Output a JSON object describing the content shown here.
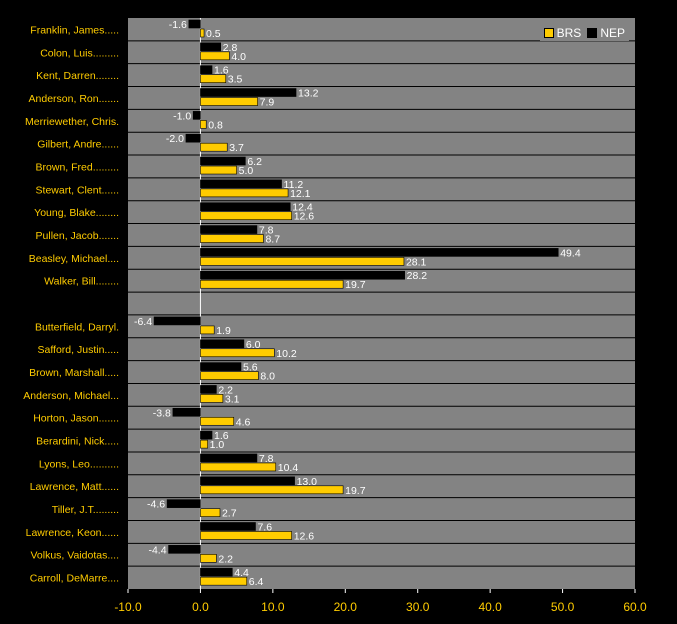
{
  "chart_data": {
    "type": "bar",
    "orientation": "horizontal",
    "categories": [
      "Franklin, James.....",
      "Colon, Luis.........",
      "Kent, Darren........",
      "Anderson, Ron.......",
      "Merriewether, Chris.",
      "Gilbert, Andre......",
      "Brown, Fred.........",
      "Stewart, Clent......",
      "Young, Blake........",
      "Pullen, Jacob.......",
      "Beasley, Michael....",
      "Walker, Bill........",
      "",
      "Butterfield, Darryl.",
      "Safford, Justin.....",
      "Brown, Marshall.....",
      "Anderson, Michael...",
      "Horton, Jason.......",
      "Berardini, Nick.....",
      "Lyons, Leo..........",
      "Lawrence, Matt......",
      "Tiller, J.T.........",
      "Lawrence, Keon......",
      "Volkus, Vaidotas....",
      "Carroll, DeMarre...."
    ],
    "series": [
      {
        "name": "NEP",
        "color": "#000000",
        "values": [
          -1.6,
          2.8,
          1.6,
          13.2,
          -1.0,
          -2.0,
          6.2,
          11.2,
          12.4,
          7.8,
          49.4,
          28.2,
          null,
          -6.4,
          6.0,
          5.6,
          2.2,
          -3.8,
          1.6,
          7.8,
          13.0,
          -4.6,
          7.6,
          -4.4,
          4.4
        ],
        "labels": [
          "-1.6",
          "2.8",
          "1.6",
          "13.2",
          "-1.0",
          "-2.0",
          "6.2",
          "11.2",
          "12.4",
          "7.8",
          "49.4",
          "28.2",
          "",
          "-6.4",
          "6.0",
          "5.6",
          "2.2",
          "-3.8",
          "1.6",
          "7.8",
          "13.0",
          "-4.6",
          "7.6",
          "-4.4",
          "4.4"
        ]
      },
      {
        "name": "BRS",
        "color": "#FFCC00",
        "values": [
          0.5,
          4.0,
          3.5,
          7.9,
          0.8,
          3.7,
          5.0,
          12.1,
          12.6,
          8.7,
          28.1,
          19.7,
          null,
          1.9,
          10.2,
          8.0,
          3.1,
          4.6,
          1.0,
          10.4,
          19.7,
          2.7,
          12.6,
          2.2,
          6.4
        ],
        "labels": [
          "0.5",
          "4.0",
          "3.5",
          "7.9",
          "0.8",
          "3.7",
          "5.0",
          "12.1",
          "12.6",
          "8.7",
          "28.1",
          "19.7",
          "",
          "1.9",
          "10.2",
          "8.0",
          "3.1",
          "4.6",
          "1.0",
          "10.4",
          "19.7",
          "2.7",
          "12.6",
          "2.2",
          "6.4"
        ]
      }
    ],
    "xlim": [
      -10,
      60
    ],
    "xticks": [
      "-10.0",
      "0.0",
      "10.0",
      "20.0",
      "30.0",
      "40.0",
      "50.0",
      "60.0"
    ],
    "grid": true,
    "legend": {
      "position": "top-right",
      "entries": [
        {
          "name": "BRS",
          "color": "#FFCC00"
        },
        {
          "name": "NEP",
          "color": "#000000"
        }
      ]
    },
    "title": "",
    "xlabel": "",
    "ylabel": "",
    "colors": {
      "background": "#000000",
      "plot_area": "#838383",
      "category_text": "#FFCC00",
      "tick_text": "#FFCC00",
      "value_text": "#FFFFFF"
    }
  }
}
